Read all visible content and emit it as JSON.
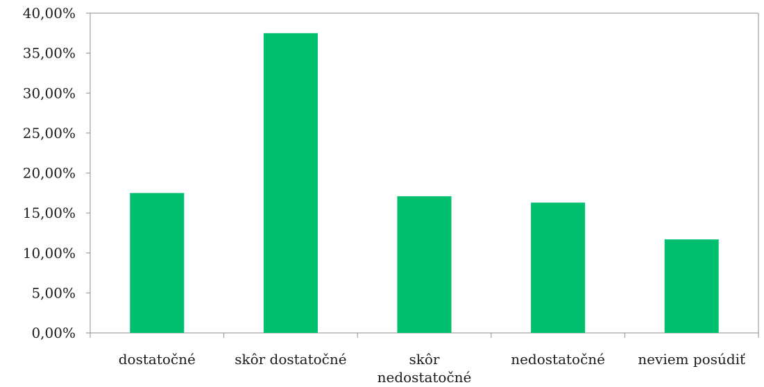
{
  "chart_data": {
    "type": "bar",
    "title": "",
    "xlabel": "",
    "ylabel": "",
    "categories": [
      [
        "dostatočné"
      ],
      [
        "skôr dostatočné"
      ],
      [
        "skôr",
        "nedostatočné"
      ],
      [
        "nedostatočné"
      ],
      [
        "neviem posúdiť"
      ]
    ],
    "values": [
      17.5,
      37.5,
      17.1,
      16.3,
      11.7
    ],
    "ylim": [
      0,
      40
    ],
    "yticks": [
      "0,00%",
      "5,00%",
      "10,00%",
      "15,00%",
      "20,00%",
      "25,00%",
      "30,00%",
      "35,00%",
      "40,00%"
    ],
    "grid": false,
    "legend": "none",
    "colors": {
      "bar": "#00BF6F",
      "axis": "#8c8c8c"
    }
  }
}
